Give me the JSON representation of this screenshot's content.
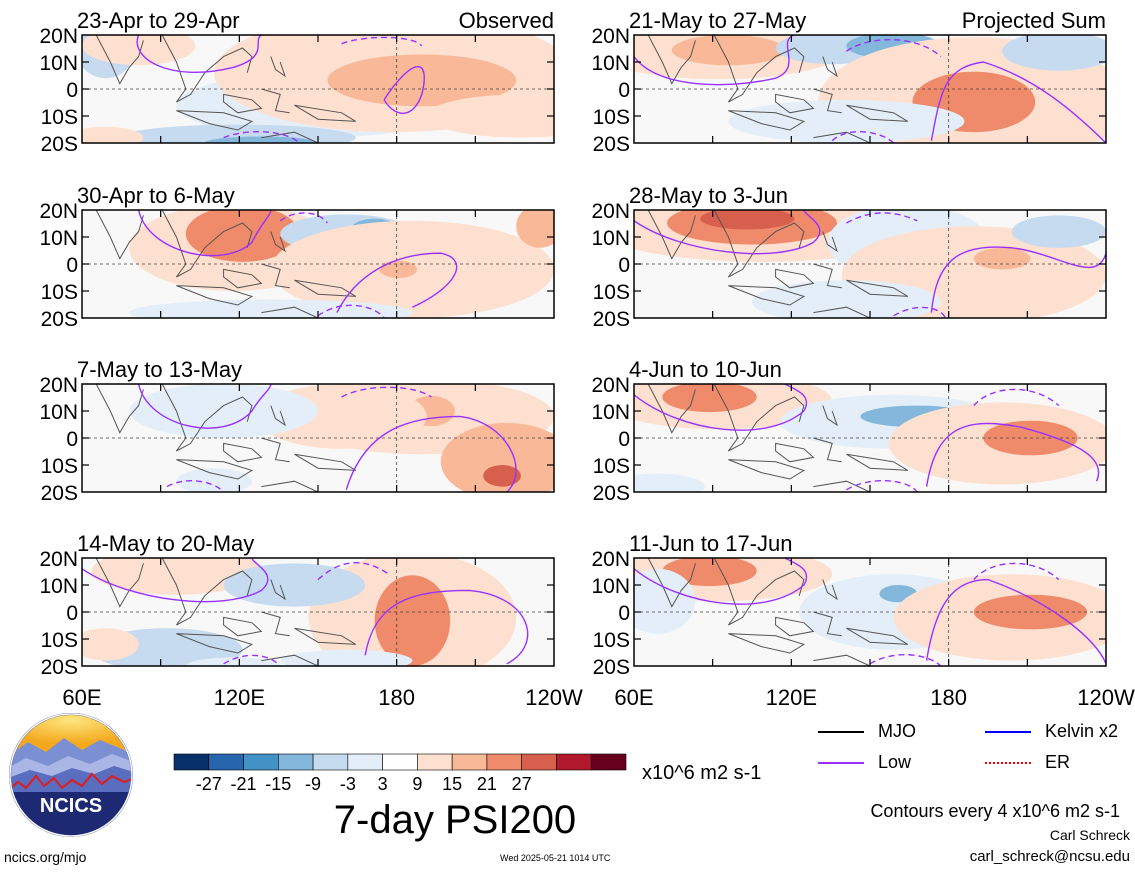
{
  "colors": {
    "neg_scale": [
      "#08306b",
      "#2566ae",
      "#4292c6",
      "#83b7dc",
      "#c6dbef",
      "#e4eef8"
    ],
    "pos_scale": [
      "#fde0cf",
      "#f9b898",
      "#ef8a6a",
      "#d6604d",
      "#b2182b",
      "#67001f"
    ],
    "land_outline": "#555555",
    "mjo_line": "#000000",
    "low_line": "#9b30ff",
    "kelvin_line": "#0000ff",
    "er_line": "#ff0000"
  },
  "chart_data": {
    "type": "heatmap",
    "variable": "7-day PSI200",
    "colorbar": {
      "ticks": [
        "-27",
        "-21",
        "-15",
        "-9",
        "-3",
        "3",
        "9",
        "15",
        "21",
        "27"
      ],
      "units": "x10^6 m2 s-1"
    },
    "x_tick_labels": [
      "60E",
      "120E",
      "180",
      "120W"
    ],
    "y_tick_labels": [
      "20N",
      "10N",
      "0",
      "10S",
      "20S"
    ],
    "lon_range": [
      "60E",
      "120W"
    ],
    "lat_range": [
      "20S",
      "20N"
    ],
    "panels": [
      {
        "title": "23-Apr to 29-Apr",
        "tag": "Observed"
      },
      {
        "title": "21-May to 27-May",
        "tag": "Projected Sum"
      },
      {
        "title": "30-Apr to 6-May",
        "tag": ""
      },
      {
        "title": "28-May to 3-Jun",
        "tag": ""
      },
      {
        "title": "7-May to 13-May",
        "tag": ""
      },
      {
        "title": "4-Jun to 10-Jun",
        "tag": ""
      },
      {
        "title": "14-May to 20-May",
        "tag": ""
      },
      {
        "title": "11-Jun to 17-Jun",
        "tag": ""
      }
    ],
    "legend": [
      {
        "label": "MJO",
        "color": "#000000",
        "style": "solid"
      },
      {
        "label": "Kelvin x2",
        "color": "#0000ff",
        "style": "solid"
      },
      {
        "label": "Low",
        "color": "#9b30ff",
        "style": "solid"
      },
      {
        "label": "ER",
        "color": "#ff0000",
        "style": "dotted"
      }
    ]
  },
  "figure": {
    "title": "7-day PSI200",
    "contour_note": "Contours every 4 x10^6 m2 s-1",
    "author": "Carl Schreck",
    "email": "carl_schreck@ncsu.edu",
    "site": "ncics.org/mjo",
    "timestamp": "Wed 2025-05-21 1014 UTC",
    "logo_text": "NCICS"
  }
}
